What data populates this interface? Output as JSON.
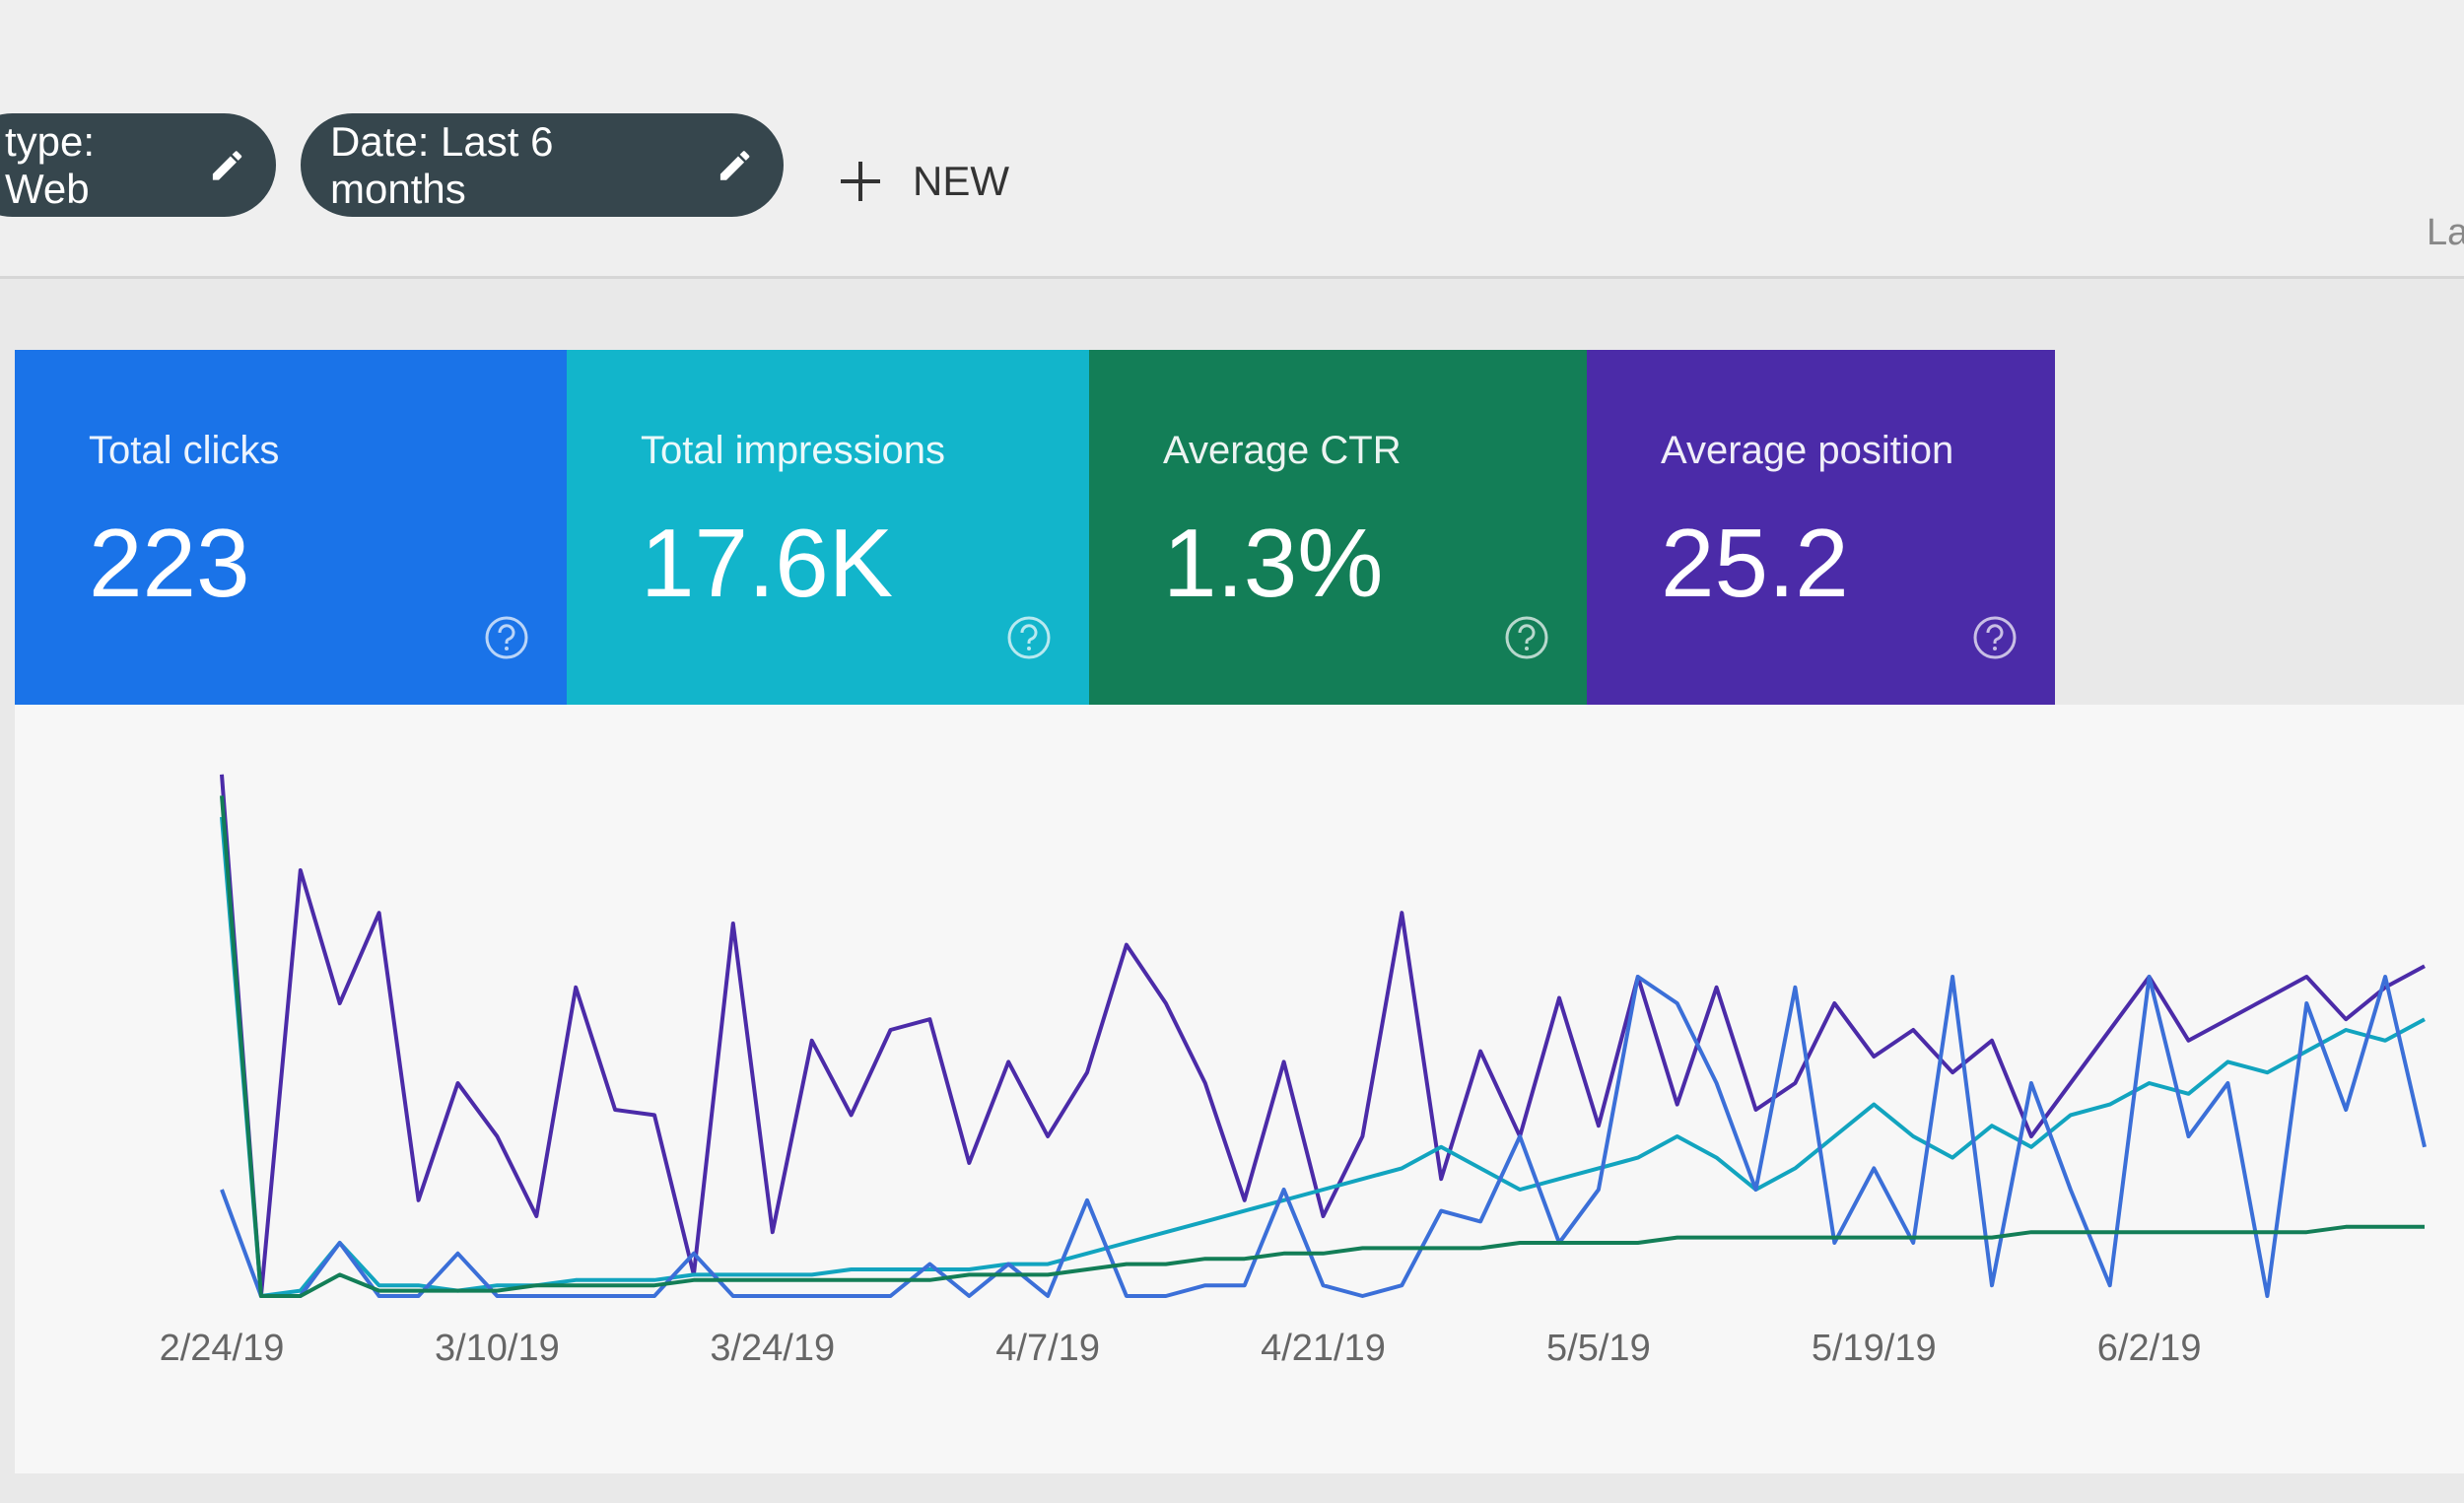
{
  "filters": [
    {
      "label": "type: Web"
    },
    {
      "label": "Date: Last 6 months"
    }
  ],
  "new_button": "NEW",
  "corner_text": "La",
  "metrics": [
    {
      "label": "Total clicks",
      "value": "223",
      "color": "#1a73e8"
    },
    {
      "label": "Total impressions",
      "value": "17.6K",
      "color": "#12b5cb"
    },
    {
      "label": "Average CTR",
      "value": "1.3%",
      "color": "#137e57"
    },
    {
      "label": "Average position",
      "value": "25.2",
      "color": "#4b2ba8"
    }
  ],
  "chart_data": {
    "type": "line",
    "categories": [
      "2/24/19",
      null,
      null,
      null,
      null,
      null,
      null,
      "3/10/19",
      null,
      null,
      null,
      null,
      null,
      null,
      "3/24/19",
      null,
      null,
      null,
      null,
      null,
      null,
      "4/7/19",
      null,
      null,
      null,
      null,
      null,
      null,
      "4/21/19",
      null,
      null,
      null,
      null,
      null,
      null,
      "5/5/19",
      null,
      null,
      null,
      null,
      null,
      null,
      "5/19/19",
      null,
      null,
      null,
      null,
      null,
      null,
      "6/2/19",
      null,
      null,
      null,
      null,
      null,
      null,
      null
    ],
    "ylim": [
      0,
      100
    ],
    "series": [
      {
        "name": "Average position",
        "color": "#4b2ba8",
        "values": [
          98,
          0,
          80,
          55,
          72,
          18,
          40,
          30,
          15,
          58,
          35,
          34,
          4,
          70,
          12,
          48,
          34,
          50,
          52,
          25,
          44,
          30,
          42,
          66,
          55,
          40,
          18,
          44,
          15,
          30,
          72,
          22,
          46,
          30,
          56,
          32,
          60,
          36,
          58,
          35,
          40,
          55,
          45,
          50,
          42,
          48,
          30,
          40,
          50,
          60,
          48,
          52,
          56,
          60,
          52,
          58,
          62
        ]
      },
      {
        "name": "Total impressions",
        "color": "#12a4bf",
        "values": [
          90,
          0,
          1,
          10,
          2,
          2,
          1,
          2,
          2,
          3,
          3,
          3,
          4,
          4,
          4,
          4,
          5,
          5,
          5,
          5,
          6,
          6,
          8,
          10,
          12,
          14,
          16,
          18,
          20,
          22,
          24,
          28,
          24,
          20,
          22,
          24,
          26,
          30,
          26,
          20,
          24,
          30,
          36,
          30,
          26,
          32,
          28,
          34,
          36,
          40,
          38,
          44,
          42,
          46,
          50,
          48,
          52
        ]
      },
      {
        "name": "Total clicks",
        "color": "#3b6fd8",
        "values": [
          20,
          0,
          0,
          10,
          0,
          0,
          8,
          0,
          0,
          0,
          0,
          0,
          8,
          0,
          0,
          0,
          0,
          0,
          6,
          0,
          6,
          0,
          18,
          0,
          0,
          2,
          2,
          20,
          2,
          0,
          2,
          16,
          14,
          30,
          10,
          20,
          60,
          55,
          40,
          20,
          58,
          10,
          24,
          10,
          60,
          2,
          40,
          20,
          2,
          60,
          30,
          40,
          0,
          55,
          35,
          60,
          28
        ]
      },
      {
        "name": "Average CTR",
        "color": "#137e57",
        "values": [
          94,
          0,
          0,
          4,
          1,
          1,
          1,
          1,
          2,
          2,
          2,
          2,
          3,
          3,
          3,
          3,
          3,
          3,
          3,
          4,
          4,
          4,
          5,
          6,
          6,
          7,
          7,
          8,
          8,
          9,
          9,
          9,
          9,
          10,
          10,
          10,
          10,
          11,
          11,
          11,
          11,
          11,
          11,
          11,
          11,
          11,
          12,
          12,
          12,
          12,
          12,
          12,
          12,
          12,
          13,
          13,
          13
        ]
      }
    ]
  }
}
